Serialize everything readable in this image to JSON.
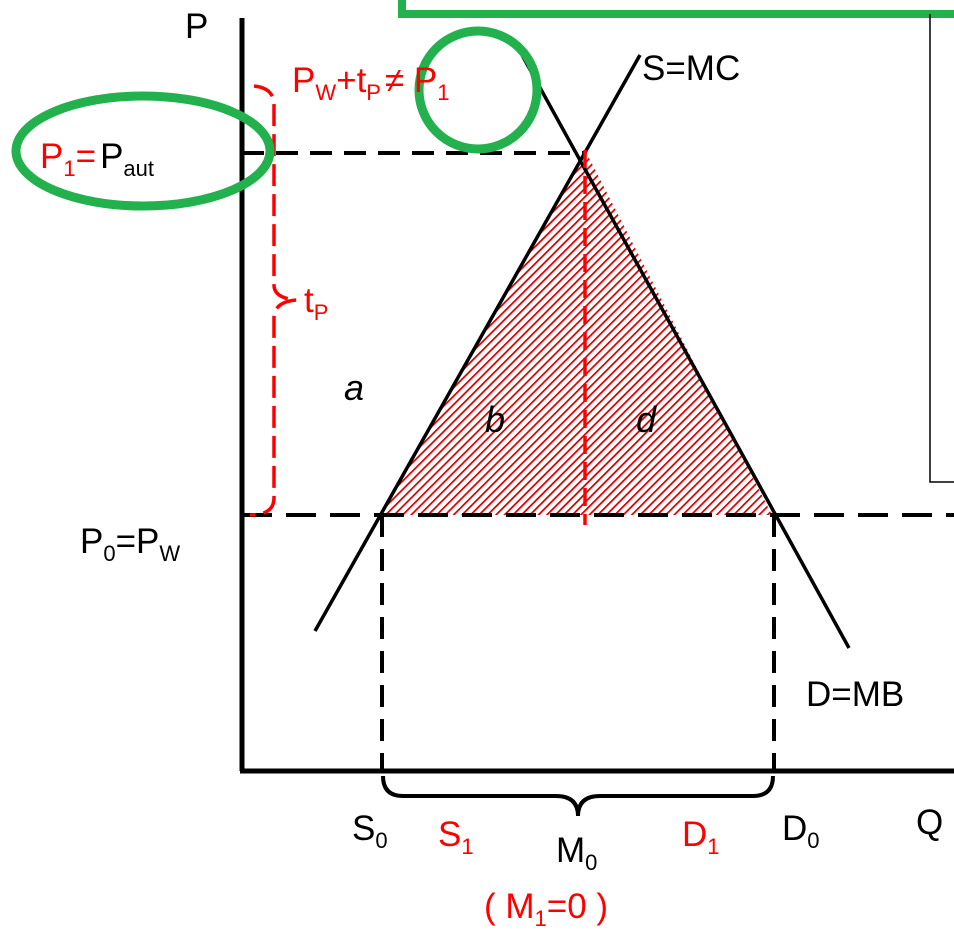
{
  "axes": {
    "y_label": "P",
    "x_label": "Q"
  },
  "curves": {
    "supply": "S=MC",
    "demand": "D=MB"
  },
  "price_labels": {
    "p1_left": "P",
    "p1_sub": "1",
    "p1_eq": "=",
    "paut": "P",
    "paut_sub": "aut",
    "p0": "P",
    "p0_sub": "0",
    "p0_eq": "=P",
    "pw_sub": "W"
  },
  "tariff_note": {
    "pw": "P",
    "pw_sub": "W",
    "plus_t": "+t",
    "tp_sub": "P",
    "neq": "≠ P",
    "p1_sub": "1"
  },
  "tariff_label": {
    "t": "t",
    "sub": "P"
  },
  "areas": {
    "a": "a",
    "b": "b",
    "d": "d"
  },
  "quantity_labels": {
    "s0": "S",
    "s0_sub": "0",
    "s1": "S",
    "s1_sub": "1",
    "m0": "M",
    "m0_sub": "0",
    "d1": "D",
    "d1_sub": "1",
    "d0": "D",
    "d0_sub": "0",
    "m1_open": "( M",
    "m1_sub": "1",
    "m1_close": "=0 )"
  },
  "colors": {
    "red": "#ff0000",
    "green": "#22b14c",
    "black": "#000000",
    "hatch_red": "#d40000"
  }
}
